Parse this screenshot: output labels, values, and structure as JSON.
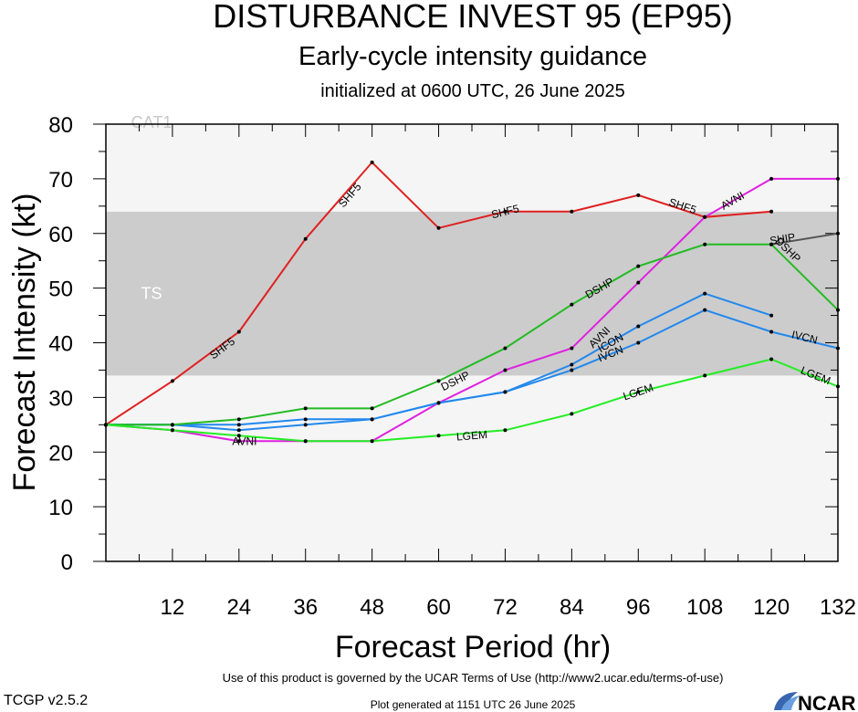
{
  "header": {
    "title": "DISTURBANCE INVEST 95 (EP95)",
    "subtitle": "Early-cycle intensity guidance",
    "init": "initialized at 0600 UTC, 26 June 2025"
  },
  "footer": {
    "version": "TCGP v2.5.2",
    "terms": "Use of this product is governed by the UCAR Terms of Use (http://www2.ucar.edu/terms-of-use)",
    "generated": "Plot generated at 1151 UTC   26 June 2025",
    "logo": "NCAR"
  },
  "chart_data": {
    "type": "line",
    "xlabel": "Forecast Period (hr)",
    "ylabel": "Forecast Intensity (kt)",
    "xlim": [
      0,
      132
    ],
    "ylim": [
      0,
      80
    ],
    "xticks": [
      12,
      24,
      36,
      48,
      60,
      72,
      84,
      96,
      108,
      120,
      132
    ],
    "yticks": [
      0,
      10,
      20,
      30,
      40,
      50,
      60,
      70,
      80
    ],
    "bands": [
      {
        "label": "TS",
        "from": 34,
        "to": 64,
        "color": "#cccccc"
      },
      {
        "label": "CAT1",
        "from": 64,
        "to": 80,
        "color": "#f5f5f5"
      }
    ],
    "background_color": "#f5f5f5",
    "series": [
      {
        "name": "SHF5",
        "color": "#e02020",
        "points": [
          [
            0,
            25
          ],
          [
            12,
            33
          ],
          [
            24,
            42
          ],
          [
            36,
            59
          ],
          [
            48,
            73
          ],
          [
            60,
            61
          ],
          [
            72,
            64
          ],
          [
            84,
            64
          ],
          [
            96,
            67
          ],
          [
            108,
            63
          ],
          [
            120,
            64
          ]
        ],
        "labels": [
          [
            21,
            39
          ],
          [
            44,
            67
          ],
          [
            72,
            64
          ],
          [
            104,
            65
          ]
        ]
      },
      {
        "name": "AVNI",
        "color": "#e020e0",
        "points": [
          [
            0,
            25
          ],
          [
            12,
            24
          ],
          [
            24,
            22
          ],
          [
            36,
            22
          ],
          [
            48,
            22
          ],
          [
            60,
            29
          ],
          [
            72,
            35
          ],
          [
            84,
            39
          ],
          [
            96,
            51
          ],
          [
            108,
            63
          ],
          [
            120,
            70
          ],
          [
            132,
            70
          ]
        ],
        "labels": [
          [
            25,
            22
          ],
          [
            89,
            41
          ],
          [
            113,
            66
          ]
        ]
      },
      {
        "name": "ICON",
        "color": "#2288ee",
        "points": [
          [
            0,
            25
          ],
          [
            12,
            25
          ],
          [
            24,
            25
          ],
          [
            36,
            26
          ],
          [
            48,
            26
          ],
          [
            60,
            29
          ],
          [
            72,
            31
          ],
          [
            84,
            36
          ],
          [
            96,
            43
          ],
          [
            108,
            49
          ],
          [
            120,
            45
          ]
        ],
        "labels": [
          [
            91,
            40
          ]
        ]
      },
      {
        "name": "IVCN",
        "color": "#2288ee",
        "points": [
          [
            0,
            25
          ],
          [
            12,
            25
          ],
          [
            24,
            24
          ],
          [
            36,
            25
          ],
          [
            48,
            26
          ],
          [
            60,
            29
          ],
          [
            72,
            31
          ],
          [
            84,
            35
          ],
          [
            96,
            40
          ],
          [
            108,
            46
          ],
          [
            120,
            42
          ],
          [
            132,
            39
          ]
        ],
        "labels": [
          [
            91,
            38
          ],
          [
            126,
            41
          ]
        ]
      },
      {
        "name": "DSHP",
        "color": "#22bb22",
        "points": [
          [
            0,
            25
          ],
          [
            12,
            25
          ],
          [
            24,
            26
          ],
          [
            36,
            28
          ],
          [
            48,
            28
          ],
          [
            60,
            33
          ],
          [
            72,
            39
          ],
          [
            84,
            47
          ],
          [
            96,
            54
          ],
          [
            108,
            58
          ],
          [
            120,
            58
          ],
          [
            132,
            46
          ]
        ],
        "labels": [
          [
            63,
            33
          ],
          [
            89,
            50
          ],
          [
            123,
            57
          ]
        ]
      },
      {
        "name": "SHIP",
        "color": "#555555",
        "points": [
          [
            120,
            58
          ],
          [
            132,
            60
          ]
        ],
        "labels": [
          [
            122,
            59
          ]
        ]
      },
      {
        "name": "LGEM",
        "color": "#22ee22",
        "points": [
          [
            0,
            25
          ],
          [
            12,
            24
          ],
          [
            24,
            23
          ],
          [
            36,
            22
          ],
          [
            48,
            22
          ],
          [
            60,
            23
          ],
          [
            72,
            24
          ],
          [
            84,
            27
          ],
          [
            96,
            31
          ],
          [
            108,
            34
          ],
          [
            120,
            37
          ],
          [
            132,
            32
          ]
        ],
        "labels": [
          [
            66,
            23
          ],
          [
            96,
            31
          ],
          [
            128,
            34
          ]
        ]
      }
    ]
  }
}
